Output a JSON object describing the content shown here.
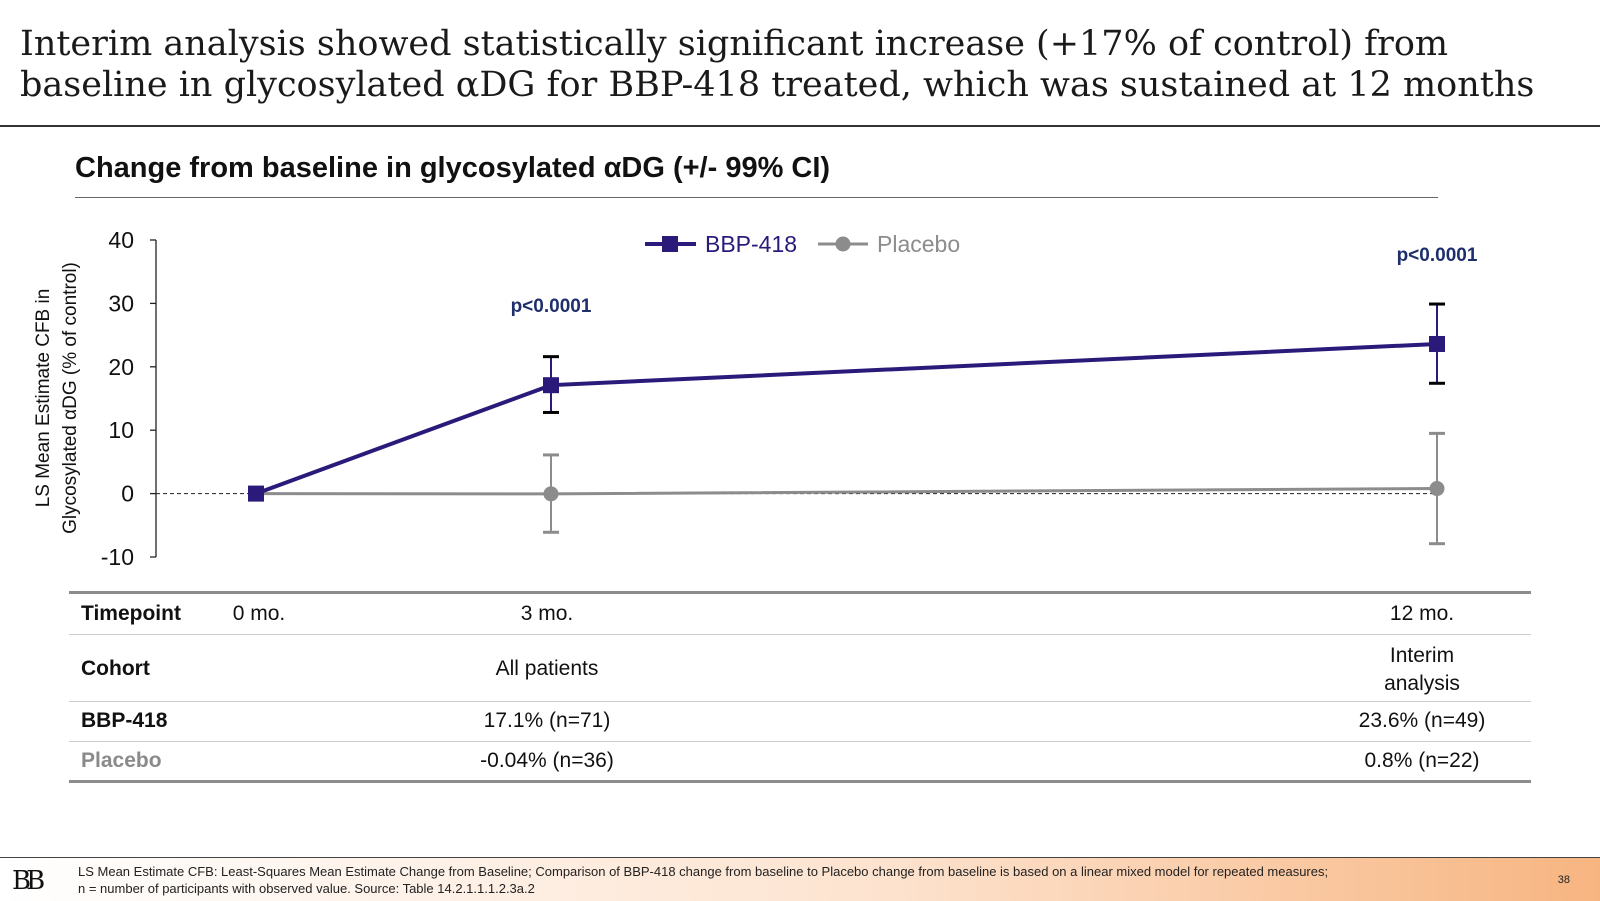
{
  "headline": {
    "line1": "Interim analysis showed statistically significant increase (+17% of control) from",
    "line2": "baseline in glycosylated αDG for BBP-418 treated, which was sustained at 12 months"
  },
  "chart_data": {
    "type": "line",
    "title": "Change from baseline in glycosylated αDG (+/- 99% CI)",
    "ylabel_line1": "LS Mean Estimate CFB in",
    "ylabel_line2": "Glycosylated αDG (% of control)",
    "ylim": [
      -10,
      40
    ],
    "yticks": [
      "40",
      "30",
      "20",
      "10",
      "0",
      "-10"
    ],
    "x": [
      "0 mo.",
      "3 mo.",
      "12 mo."
    ],
    "reference_line": 0,
    "legend_position": "top-center",
    "series": [
      {
        "name": "BBP-418",
        "color": "#2b1a7a",
        "marker": "square",
        "values": [
          0,
          17.1,
          23.6
        ],
        "ci_low": [
          null,
          12.8,
          17.4
        ],
        "ci_high": [
          null,
          21.6,
          29.9
        ]
      },
      {
        "name": "Placebo",
        "color": "#8c8c8c",
        "marker": "circle",
        "values": [
          0,
          -0.04,
          0.8
        ],
        "ci_low": [
          null,
          -6.1,
          -7.9
        ],
        "ci_high": [
          null,
          6.1,
          9.5
        ]
      }
    ],
    "annotations": [
      {
        "text": "p<0.0001",
        "x": "3 mo."
      },
      {
        "text": "p<0.0001",
        "x": "12 mo."
      }
    ]
  },
  "table": {
    "timepoint": {
      "label": "Timepoint",
      "c0": "0 mo.",
      "c3": "3 mo.",
      "c12": "12 mo."
    },
    "cohort": {
      "label": "Cohort",
      "c3": "All patients",
      "c12_line1": "Interim",
      "c12_line2": "analysis"
    },
    "bbp": {
      "label": "BBP-418",
      "c3": "17.1% (n=71)",
      "c12": "23.6% (n=49)"
    },
    "placebo": {
      "label": "Placebo",
      "c3": "-0.04% (n=36)",
      "c12": "0.8% (n=22)"
    }
  },
  "footer": {
    "logo": "BB",
    "line1": "LS Mean Estimate CFB: Least-Squares Mean Estimate Change from Baseline; Comparison of BBP-418 change from baseline to Placebo change from baseline is based on a linear mixed model for repeated measures;",
    "line2": "n = number of participants with observed value. Source: Table 14.2.1.1.1.2.3a.2",
    "page": "38"
  }
}
